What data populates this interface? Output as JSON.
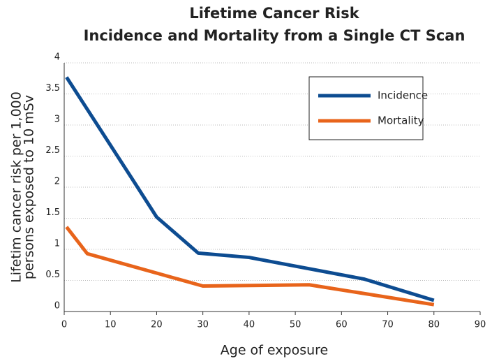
{
  "chart_data": {
    "type": "line",
    "title": [
      "Lifetime Cancer Risk",
      "Incidence and Mortality from a Single CT Scan"
    ],
    "y_label": [
      "Lifetim cancer risk per 1,000",
      "persons exposed to 10 mSv"
    ],
    "x_label": "Age of exposure",
    "series": [
      {
        "name": "Incidence",
        "color": "#0d4c91",
        "x": [
          0.5,
          15,
          20,
          29,
          40,
          65,
          80
        ],
        "values": [
          3.77,
          2.1,
          1.52,
          0.94,
          0.87,
          0.52,
          0.18
        ]
      },
      {
        "name": "Mortality",
        "color": "#e8641b",
        "x": [
          0.5,
          5,
          30,
          53,
          80
        ],
        "values": [
          1.36,
          0.93,
          0.41,
          0.43,
          0.11
        ]
      }
    ],
    "xlim": [
      0,
      90
    ],
    "xticks": [
      0,
      10,
      20,
      30,
      40,
      50,
      60,
      70,
      80,
      90
    ],
    "ylim": [
      0,
      4
    ],
    "yticks": [
      0,
      0.5,
      1,
      1.5,
      2,
      2.5,
      3,
      3.5,
      4
    ],
    "grid": true,
    "legend": "upper right"
  }
}
